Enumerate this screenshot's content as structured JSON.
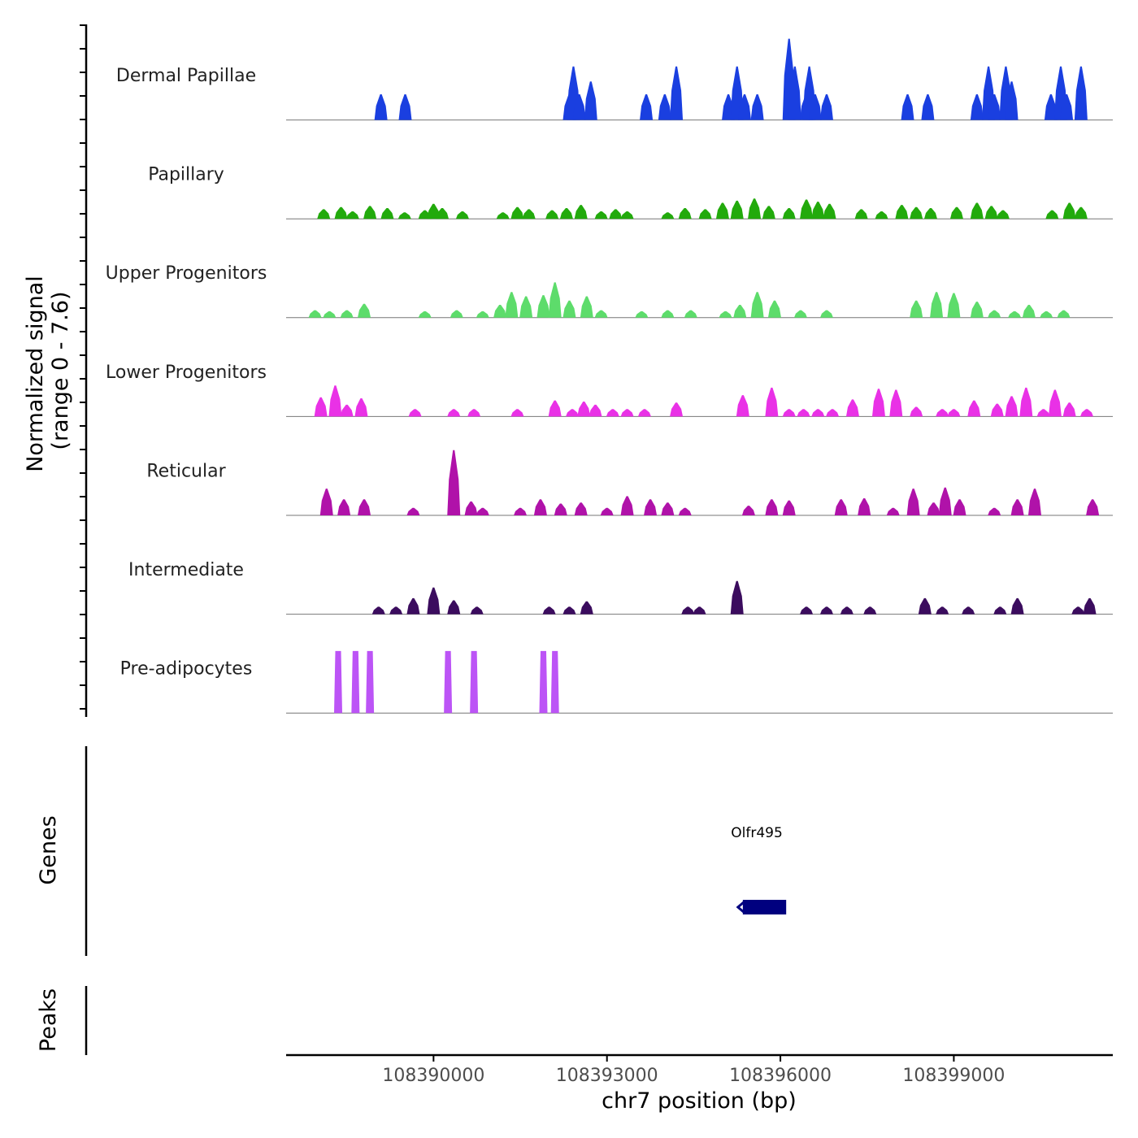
{
  "chart_data": {
    "type": "area",
    "title": "",
    "ylabel_line1": "Normalized signal",
    "ylabel_line2": "(range 0 - 7.6)",
    "xlabel": "chr7 position (bp)",
    "ylim": [
      0,
      7.6
    ],
    "xlim": [
      108387450,
      108401750
    ],
    "x_ticks": [
      {
        "value": 108390000,
        "label": "108390000"
      },
      {
        "value": 108393000,
        "label": "108393000"
      },
      {
        "value": 108396000,
        "label": "108396000"
      },
      {
        "value": 108399000,
        "label": "108399000"
      }
    ],
    "tracks": [
      {
        "name": "Dermal Papillae",
        "color": "#1a3fe0",
        "peaks": [
          [
            108389090,
            2.4
          ],
          [
            108389510,
            2.4
          ],
          [
            108392350,
            2.4
          ],
          [
            108392420,
            5.0
          ],
          [
            108392520,
            2.4
          ],
          [
            108392720,
            3.6
          ],
          [
            108393680,
            2.4
          ],
          [
            108394000,
            2.4
          ],
          [
            108394200,
            5.0
          ],
          [
            108395100,
            2.4
          ],
          [
            108395250,
            5.0
          ],
          [
            108395380,
            2.4
          ],
          [
            108395600,
            2.4
          ],
          [
            108396150,
            7.6
          ],
          [
            108396250,
            5.0
          ],
          [
            108396450,
            2.4
          ],
          [
            108396500,
            5.0
          ],
          [
            108396600,
            2.4
          ],
          [
            108396800,
            2.4
          ],
          [
            108398200,
            2.4
          ],
          [
            108398550,
            2.4
          ],
          [
            108399400,
            2.4
          ],
          [
            108399600,
            5.0
          ],
          [
            108399700,
            2.4
          ],
          [
            108399900,
            5.0
          ],
          [
            108400000,
            3.6
          ],
          [
            108400680,
            2.4
          ],
          [
            108400850,
            5.0
          ],
          [
            108400950,
            2.4
          ],
          [
            108401200,
            5.0
          ]
        ]
      },
      {
        "name": "Papillary",
        "color": "#22aa0c",
        "peaks": [
          [
            108388100,
            0.9
          ],
          [
            108388400,
            1.1
          ],
          [
            108388600,
            0.7
          ],
          [
            108388900,
            1.2
          ],
          [
            108389200,
            1.0
          ],
          [
            108389500,
            0.6
          ],
          [
            108389850,
            0.8
          ],
          [
            108390000,
            1.4
          ],
          [
            108390150,
            1.0
          ],
          [
            108390500,
            0.7
          ],
          [
            108391200,
            0.6
          ],
          [
            108391450,
            1.1
          ],
          [
            108391650,
            0.9
          ],
          [
            108392050,
            0.8
          ],
          [
            108392300,
            1.0
          ],
          [
            108392550,
            1.3
          ],
          [
            108392900,
            0.7
          ],
          [
            108393150,
            0.9
          ],
          [
            108393350,
            0.7
          ],
          [
            108394050,
            0.6
          ],
          [
            108394350,
            1.0
          ],
          [
            108394700,
            0.9
          ],
          [
            108395000,
            1.5
          ],
          [
            108395250,
            1.7
          ],
          [
            108395550,
            1.9
          ],
          [
            108395800,
            1.2
          ],
          [
            108396150,
            1.0
          ],
          [
            108396450,
            1.8
          ],
          [
            108396650,
            1.6
          ],
          [
            108396850,
            1.4
          ],
          [
            108397400,
            0.9
          ],
          [
            108397750,
            0.7
          ],
          [
            108398100,
            1.3
          ],
          [
            108398350,
            1.1
          ],
          [
            108398600,
            1.0
          ],
          [
            108399050,
            1.1
          ],
          [
            108399400,
            1.5
          ],
          [
            108399650,
            1.2
          ],
          [
            108399850,
            0.8
          ],
          [
            108400700,
            0.8
          ],
          [
            108401000,
            1.5
          ],
          [
            108401200,
            1.1
          ]
        ]
      },
      {
        "name": "Upper Progenitors",
        "color": "#5ddc6b",
        "peaks": [
          [
            108387950,
            0.7
          ],
          [
            108388200,
            0.6
          ],
          [
            108388500,
            0.7
          ],
          [
            108388800,
            1.3
          ],
          [
            108389850,
            0.6
          ],
          [
            108390400,
            0.7
          ],
          [
            108390850,
            0.6
          ],
          [
            108391150,
            1.2
          ],
          [
            108391350,
            2.4
          ],
          [
            108391600,
            2.0
          ],
          [
            108391900,
            2.1
          ],
          [
            108392100,
            3.3
          ],
          [
            108392350,
            1.6
          ],
          [
            108392650,
            2.0
          ],
          [
            108392900,
            0.7
          ],
          [
            108393600,
            0.6
          ],
          [
            108394050,
            0.7
          ],
          [
            108394450,
            0.7
          ],
          [
            108395050,
            0.6
          ],
          [
            108395300,
            1.2
          ],
          [
            108395600,
            2.4
          ],
          [
            108395900,
            1.6
          ],
          [
            108396350,
            0.7
          ],
          [
            108396800,
            0.7
          ],
          [
            108398350,
            1.6
          ],
          [
            108398700,
            2.4
          ],
          [
            108399000,
            2.3
          ],
          [
            108399400,
            1.5
          ],
          [
            108399700,
            0.7
          ],
          [
            108400050,
            0.6
          ],
          [
            108400300,
            1.2
          ],
          [
            108400600,
            0.6
          ],
          [
            108400900,
            0.7
          ]
        ]
      },
      {
        "name": "Lower Progenitors",
        "color": "#e931e6",
        "peaks": [
          [
            108388050,
            1.8
          ],
          [
            108388300,
            2.9
          ],
          [
            108388500,
            1.1
          ],
          [
            108388750,
            1.7
          ],
          [
            108389680,
            0.7
          ],
          [
            108390350,
            0.7
          ],
          [
            108390700,
            0.7
          ],
          [
            108391450,
            0.7
          ],
          [
            108392100,
            1.5
          ],
          [
            108392400,
            0.7
          ],
          [
            108392600,
            1.4
          ],
          [
            108392800,
            1.1
          ],
          [
            108393100,
            0.7
          ],
          [
            108393350,
            0.7
          ],
          [
            108393650,
            0.7
          ],
          [
            108394200,
            1.3
          ],
          [
            108395350,
            2.0
          ],
          [
            108395850,
            2.7
          ],
          [
            108396150,
            0.7
          ],
          [
            108396400,
            0.7
          ],
          [
            108396650,
            0.7
          ],
          [
            108396900,
            0.7
          ],
          [
            108397250,
            1.6
          ],
          [
            108397700,
            2.6
          ],
          [
            108398000,
            2.5
          ],
          [
            108398350,
            0.9
          ],
          [
            108398800,
            0.7
          ],
          [
            108399000,
            0.7
          ],
          [
            108399350,
            1.5
          ],
          [
            108399750,
            1.2
          ],
          [
            108400000,
            1.9
          ],
          [
            108400250,
            2.7
          ],
          [
            108400550,
            0.7
          ],
          [
            108400750,
            2.5
          ],
          [
            108401000,
            1.3
          ],
          [
            108401300,
            0.7
          ]
        ]
      },
      {
        "name": "Reticular",
        "color": "#b012a9",
        "peaks": [
          [
            108388150,
            2.5
          ],
          [
            108388450,
            1.5
          ],
          [
            108388800,
            1.5
          ],
          [
            108389650,
            0.7
          ],
          [
            108390350,
            6.1
          ],
          [
            108390650,
            1.3
          ],
          [
            108390850,
            0.7
          ],
          [
            108391500,
            0.7
          ],
          [
            108391850,
            1.5
          ],
          [
            108392200,
            1.1
          ],
          [
            108392550,
            1.2
          ],
          [
            108393000,
            0.7
          ],
          [
            108393350,
            1.8
          ],
          [
            108393750,
            1.5
          ],
          [
            108394050,
            1.2
          ],
          [
            108394350,
            0.7
          ],
          [
            108395450,
            0.9
          ],
          [
            108395850,
            1.5
          ],
          [
            108396150,
            1.4
          ],
          [
            108397050,
            1.5
          ],
          [
            108397450,
            1.6
          ],
          [
            108397950,
            0.7
          ],
          [
            108398300,
            2.5
          ],
          [
            108398650,
            1.2
          ],
          [
            108398850,
            2.6
          ],
          [
            108399100,
            1.5
          ],
          [
            108399700,
            0.7
          ],
          [
            108400100,
            1.5
          ],
          [
            108400400,
            2.5
          ],
          [
            108401400,
            1.5
          ]
        ]
      },
      {
        "name": "Intermediate",
        "color": "#3b0c5e",
        "peaks": [
          [
            108389050,
            0.7
          ],
          [
            108389350,
            0.7
          ],
          [
            108389650,
            1.5
          ],
          [
            108390000,
            2.5
          ],
          [
            108390350,
            1.3
          ],
          [
            108390750,
            0.7
          ],
          [
            108392000,
            0.7
          ],
          [
            108392350,
            0.7
          ],
          [
            108392650,
            1.2
          ],
          [
            108394400,
            0.7
          ],
          [
            108394600,
            0.7
          ],
          [
            108395250,
            3.1
          ],
          [
            108396450,
            0.7
          ],
          [
            108396800,
            0.7
          ],
          [
            108397150,
            0.7
          ],
          [
            108397550,
            0.7
          ],
          [
            108398500,
            1.5
          ],
          [
            108398800,
            0.7
          ],
          [
            108399250,
            0.7
          ],
          [
            108399800,
            0.7
          ],
          [
            108400100,
            1.5
          ],
          [
            108401150,
            0.7
          ],
          [
            108401350,
            1.5
          ]
        ]
      },
      {
        "name": "Pre-adipocytes",
        "color": "#bc54f6",
        "peaks": [
          [
            108388350,
            5.8
          ],
          [
            108388650,
            5.8
          ],
          [
            108388900,
            5.8
          ],
          [
            108390250,
            5.8
          ],
          [
            108390700,
            5.8
          ],
          [
            108391900,
            5.8
          ],
          [
            108392100,
            5.8
          ]
        ]
      }
    ],
    "genes_panel_label": "Genes",
    "gene": {
      "name": "Olfr495",
      "start": 108395350,
      "end": 108396100,
      "strand": "-",
      "color": "#00007f"
    },
    "peaks_panel_label": "Peaks"
  }
}
